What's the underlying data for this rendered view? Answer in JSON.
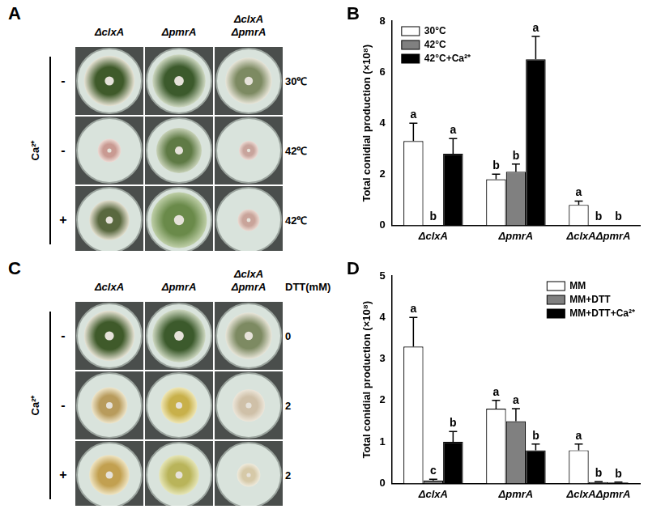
{
  "panels": [
    {
      "type": "plate_photos",
      "panel_label": "A",
      "columns": [
        [
          "ΔclxA"
        ],
        [
          "ΔpmrA"
        ],
        [
          "ΔclxA",
          "ΔpmrA"
        ]
      ],
      "row_group_label": "Ca²⁺",
      "rows": [
        {
          "sign": "-",
          "condition": "30℃"
        },
        {
          "sign": "-",
          "condition": "42℃"
        },
        {
          "sign": "+",
          "condition": "42℃"
        }
      ]
    },
    {
      "type": "plate_photos",
      "panel_label": "C",
      "columns": [
        [
          "ΔclxA"
        ],
        [
          "ΔpmrA"
        ],
        [
          "ΔclxA",
          "ΔpmrA"
        ]
      ],
      "row_group_label": "Ca²⁺",
      "condition_header": "DTT(mM)",
      "rows": [
        {
          "sign": "-",
          "condition": "0"
        },
        {
          "sign": "-",
          "condition": "2"
        },
        {
          "sign": "+",
          "condition": "2"
        }
      ]
    }
  ],
  "chart_data": [
    {
      "type": "bar",
      "panel_label": "B",
      "categories": [
        "ΔclxA",
        "ΔpmrA",
        "ΔclxAΔpmrA"
      ],
      "y_label": "Total conidial production (×10⁸)",
      "ylim": [
        0,
        8
      ],
      "yticks": [
        0,
        2,
        4,
        6,
        8
      ],
      "grid": false,
      "legend": "upper left",
      "series": [
        {
          "name": "30°C",
          "color": "#ffffff",
          "values": [
            3.3,
            1.8,
            0.8
          ],
          "errors": [
            0.7,
            0.2,
            0.15
          ],
          "letters": [
            "a",
            "b",
            "a"
          ]
        },
        {
          "name": "42°C",
          "color": "#808080",
          "values": [
            0,
            2.1,
            0
          ],
          "errors": [
            0,
            0.3,
            0
          ],
          "letters": [
            "b",
            "b",
            "b"
          ]
        },
        {
          "name": "42°C+Ca²⁺",
          "color": "#000000",
          "values": [
            2.8,
            6.5,
            0
          ],
          "errors": [
            0.6,
            0.9,
            0
          ],
          "letters": [
            "a",
            "a",
            "b"
          ]
        }
      ]
    },
    {
      "type": "bar",
      "panel_label": "D",
      "categories": [
        "ΔclxA",
        "ΔpmrA",
        "ΔclxAΔpmrA"
      ],
      "y_label": "Total conidial production (×10⁸)",
      "ylim": [
        0,
        5
      ],
      "yticks": [
        0,
        1,
        2,
        3,
        4,
        5
      ],
      "grid": false,
      "legend": "upper right",
      "series": [
        {
          "name": "MM",
          "color": "#ffffff",
          "values": [
            3.3,
            1.8,
            0.8
          ],
          "errors": [
            0.7,
            0.2,
            0.15
          ],
          "letters": [
            "a",
            "a",
            "a"
          ]
        },
        {
          "name": "MM+DTT",
          "color": "#808080",
          "values": [
            0.07,
            1.5,
            0.03
          ],
          "errors": [
            0.03,
            0.3,
            0.01
          ],
          "letters": [
            "c",
            "a",
            "b"
          ]
        },
        {
          "name": "MM+DTT+Ca²⁺",
          "color": "#000000",
          "values": [
            1.0,
            0.8,
            0.02
          ],
          "errors": [
            0.25,
            0.15,
            0.01
          ],
          "letters": [
            "b",
            "b",
            "b"
          ]
        }
      ]
    }
  ]
}
